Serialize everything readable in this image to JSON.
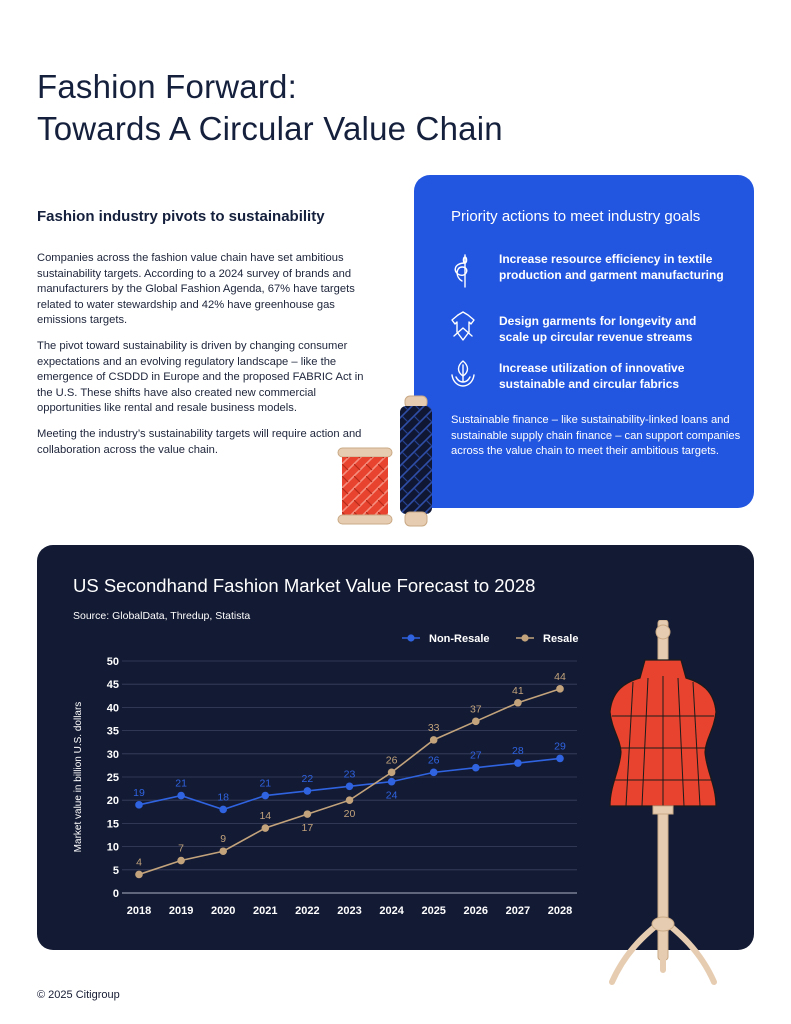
{
  "page": {
    "title_line1": "Fashion Forward:",
    "title_line2": "Towards A Circular Value Chain",
    "footer": "© 2025 Citigroup"
  },
  "left": {
    "heading": "Fashion industry pivots to sustainability",
    "paragraphs": [
      "Companies across the fashion value chain have set ambitious sustainability targets. According to a 2024 survey of brands and manufacturers by the Global Fashion Agenda, 67% have targets related to water stewardship and 42% have greenhouse gas emissions targets.",
      "The pivot toward sustainability is driven by changing consumer expectations and an evolving regulatory landscape – like the emergence of CSDDD in Europe and the proposed FABRIC Act in the U.S. These shifts have also created new commercial opportunities like rental and resale business models.",
      "Meeting the industry’s sustainability targets will require action and collaboration across the value chain."
    ]
  },
  "panel": {
    "heading": "Priority actions to meet industry goals",
    "actions": [
      {
        "icon": "needle-thread-icon",
        "text": "Increase resource efficiency in textile production and garment manufacturing"
      },
      {
        "icon": "recycle-garment-icon",
        "text": "Design garments for longevity and scale up circular revenue streams"
      },
      {
        "icon": "leaf-hands-icon",
        "text": "Increase utilization of innovative sustainable and circular fabrics"
      }
    ],
    "note": "Sustainable finance – like sustainability-linked loans and sustainable supply chain finance – can support companies across the value chain to meet their ambitious targets."
  },
  "colors": {
    "panel_blue": "#2356e0",
    "chart_bg": "#131a33",
    "non_resale": "#2f63e0",
    "resale": "#c2a37c",
    "spool_red": "#e8432e",
    "mannequin_red": "#e8432e"
  },
  "chart_data": {
    "type": "line",
    "title": "US Secondhand Fashion Market Value Forecast to 2028",
    "subtitle": "Source: GlobalData, Thredup, Statista",
    "ylabel": "Market value in billion U.S. dollars",
    "xlabel": "",
    "x": [
      "2018",
      "2019",
      "2020",
      "2021",
      "2022",
      "2023",
      "2024",
      "2025",
      "2026",
      "2027",
      "2028"
    ],
    "ylim": [
      0,
      50
    ],
    "yticks": [
      0,
      5,
      10,
      15,
      20,
      25,
      30,
      35,
      40,
      45,
      50
    ],
    "grid": true,
    "legend_position": "top-right",
    "series": [
      {
        "name": "Non-Resale",
        "color": "#2f63e0",
        "values": [
          19,
          21,
          18,
          21,
          22,
          23,
          24,
          26,
          27,
          28,
          29
        ]
      },
      {
        "name": "Resale",
        "color": "#c2a37c",
        "values": [
          4,
          7,
          9,
          14,
          17,
          20,
          26,
          33,
          37,
          41,
          44
        ]
      }
    ]
  }
}
